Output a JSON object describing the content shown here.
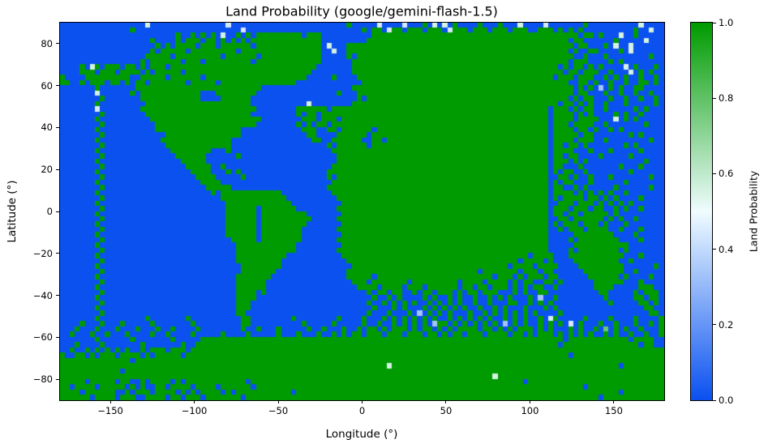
{
  "title": "Land Probability (google/gemini-flash-1.5)",
  "chart_data": {
    "type": "heatmap",
    "title": "Land Probability (google/gemini-flash-1.5)",
    "xlabel": "Longitude (°)",
    "ylabel": "Latitude (°)",
    "xlim": [
      -180,
      180
    ],
    "ylim": [
      -90,
      90
    ],
    "xticks": [
      -150,
      -100,
      -50,
      0,
      50,
      100,
      150
    ],
    "yticks": [
      80,
      60,
      40,
      20,
      0,
      -20,
      -40,
      -60,
      -80
    ],
    "grid_on": false,
    "colorbar": {
      "label": "Land Probability",
      "ticks": [
        0.0,
        0.2,
        0.4,
        0.6,
        0.8,
        1.0
      ]
    },
    "colormap": {
      "stops": [
        {
          "t": 0.0,
          "color": "#0b51f0"
        },
        {
          "t": 0.5,
          "color": "#f0fdff"
        },
        {
          "t": 1.0,
          "color": "#009b00"
        }
      ]
    },
    "grid": {
      "cols": 120,
      "lon_step_deg": 3,
      "lat_step_deg": 2.5,
      "value_encoding": "each digit d is land probability d/9, rows ordered lat +90 (top) to -90 (bottom), cols lon -180 to +180",
      "rows_lat_desc": [
        "000000000000000005000000000000000400000000000000000000000900000400004000905050900009000900050000400000009000000000050000",
        "000000000000009000000000000000000000400000000000000000000000909904990999099904999099909990999009990909090000000000900500",
        "000000000000000000000009009090905009090999999999099900000000009999999999999999999999999999999999999999909909000500900000",
        "000000000000000000900009099909909090909999999999999900000000099999999999999999999999999999999999999990990000009000005000",
        "000000000000000000090909999099909999990999999999999905000999999999999999999999999999999999999999999999099000905005000000",
        "000000000000000000909999909999999990999999999999999900500999999999999999999999999999999999999999999990900990000905000000",
        "000000000000000009999909999999990999999099999999999900000909999999999999999999999999999999999999999999009000900000000900",
        "000000000000000090999999099909999999990999999999999900000099999999999999999999999999999999999999999990999000090900000000",
        "000090590999099090999099999999999999999999999999999000000099999999999999999999999999999999999999999090990909000050900090",
        "000099909990999909099999099999999999999999999999990000000099999999999999999999999999999999999999999909909990090005090900",
        "900009999999990099999099999909999999999999999999900000900009999999999999999999999999999999999999990999099900909090090090",
        "990090999099090990999999909999909999999999999990000000000000999999999999999999999999999999999999999990099090090090099090",
        "000000090000000999999999999999999999999900000000000000000099999999999999999999999999999999999999999999090903090900990000",
        "000000050000009099999999999900099999999000000000000000090009999999999999999999999999999999999999999999099000900900900900",
        "000000009000000099999999999900009999990000000000000000000009099999999999999999999999999999999999999990909900090090090090",
        "000000090000000009999999999999999999990000000000050000000099999999999999999999999999999999999999999099090900900090000090",
        "000000040000000099999999999999999999999000000009999990999999999999999999999999999999999999999999909990909900900000909000",
        "000000009000000009999999999999999999990000000009099099999999999999999999999999999999999999999999909999090900009090090000",
        "000000090000000000999999999999999999999900000000999099909999999999999999999999999999999999999999909999099990005090900000",
        "000000009000000000099999999999999999999000000009090990999999999999999999999999999999999999999999909990999900900000009000",
        "000000090000000000099999999999999999000000000000999009909999990999999999999999999999999999999999909999099090090900000000",
        "000000009000000000000999999999999999000000000000099000099999909999999999999999999999999999999999909999909900000009090000",
        "000000090000000000009999999999999900000000000000009900999999009909999999999999999999999999999999909999099900900000000900",
        "000000009000000000000999999999999900000000000000000009099999909999999999999999999999999999999999909909909000000090900000",
        "000000090000000000000099999999000900000000000000000000999999999999999999999999999999999999999999909999000900090000090000",
        "000000009000000000000009999990000009000000000000000000099999999999999999999999999999999999999999909909900009000009000000",
        "000000090000000000000000999990000000000000000000000000099999999999999999999999999999999999999999909990909000000000009000",
        "000000009000000000000000099999009000000000000000000000999999999999999999999999999999999999999999909900090000000900090000",
        "000000090000000000000000009999000909000000000000000009999999999999999999999999999999999999999999909099009000000009000000",
        "000000009000000000000000000999900000900000000000000009099999999999999999999999999999999999999999900990900900090000000900",
        "000000090000000000000000000099990000000000000000000000999999999999999999999999999999999999999999909099000900000090000000",
        "000000009000000000000000000009999900000000000000000009999999999999999999999999999999999999999999909900909000009000000900",
        "000000090000000000000000000000909999999999990000000000999999999999999999999999999999999999999999909999090909090090000000",
        "000000009000000000000000000000009999999999999000000000099999999999999999999999999999999999999999909099990990909000090000",
        "000000090000000000000000000000000999999999999900000000009999999999999999999999999999999999999999900999099909090909000000",
        "000000009000000000000000000000000999999099999990000000099999999999999999999999999999999999999999909990999099009090090000",
        "000000090000000000000000000000000999999099999999900000009999999999999999999999999999999999999999909909909999909000000000",
        "000000009000000000000000000000000999999099999999990000099999999999999999999999999999999999999999900990999999090900900000",
        "000000090000000000000000000000000999999099999999900000009999999999999999999999999999999999999999909099909990900090000000",
        "000000009000000000000000000000000999999099999999000000099999999999999999999999999999999999999999900909990999900900090000",
        "000000090000000000000000000000000999999099999999000000009999999999999999999999999999999999999999900000999999990000900000",
        "000000009000000000000000000000000099999099999999000000099999999999999999999999999999999999999999900009099999999000090000",
        "000000090000000000000000000000000009999999999990000000009999999999999999999999999999999999999999900000999999999990000000",
        "000000009000000000000000000000000009999999999990000000099999999999999999999999999999999999999999900009099999999090000000",
        "000000090000000000000000000000000009999999999000000000009999999999999999999999999999999999999099990009999999999900090000",
        "000000009000000000000000000000000009999999990000000000000999999999999999999999999999999999909999090000999999999009000000",
        "000000090000000000000000000000000000999999990000000000000099999999999999999999999999999990999909999000099999999900000090",
        "000000009000000000000000000000000000999999900000000000000999999999999999999999999990999999909990990000009999999900900000",
        "000000090000000000000000000000000009999999000000000000000999990999999999999999999999990999090999099000000999999090000900",
        "000000009000000000000000000000000009999990000000000000000099909999999099999999909999099990909900990900000099999900090000",
        "000000090000000000000000000000000009999990000000000000000009999099990999099999909909909990909099009000000099990000099900",
        "000000009000000000000000000000000009999090000000000000000000090990990090990999090990999000909009900000000009900000909990",
        "000000090000000000000000000000000009999000000000000000000000009009090000909009090090090909000903009000000000900000990990",
        "000000009000000000000000000000000009990000000000000000000000090090909090090909090090090009900909090000000000090000099090",
        "000000090000000000000000000000000009990000000000000000000000009000909000909090909009009090009000909000000000000000009900",
        "000000009000000000000000000000000009900000000000000000000000090009000903090909000900909090909090000900000000000000000990",
        "000000090000000009000000090000000000990000000090000000090000900090909090909009090909090090909009049000009000090000900009",
        "000090009000900000900000009000000000990000000000900000900000900900909090903990909090909030909009090904090009009000900909",
        "000900090009000900090090000900000000900900090000090090009009099090999090990909099990990909099909090009090090709090090009",
        "009000900900090000900900009000009000090000090009000900909099099909990999099090990999099990990909990909090900909009009009",
        "000000090000009000000090000099999999999999999999999999999999999999999999999999999999999999999999999909999999999990999900",
        "000900009000000090000000900999999999999999999999999999999999999999999999999999999999999999999999999099999999999999909900",
        "009009090909090090999099909999999999999999999999999999999999999999999999999999999999999999999999999999999999999999999999",
        "900990909990999909099999099999999999999999999999999999999999999999999999999999999999999999999999999990999999999999999999",
        "999999999999990999999999999999999999999999999999999999999999999999999999999999999999999999999999999999999999999999999999",
        "999999999999999999999999999999999999999999999999999999999999999995999999999999999999999999999999999999999999999099999999",
        "999999999999099999999999999999999999999999999999999999999999999999999999999999999999999999999999999999999999999999999999",
        "999999999999999999999999999999999999999999999999999999999999999999999999999999999999995999999999999999999999999999999999",
        "999990999990990090999909099999999999909999999999999999999999999999999999999999999999999999990999999999999999999999999999",
        "990999909999909090099099990999909999990999999999999999999999999999999999999999999999999999999999999999990999999999999999",
        "999909999990090999099990909099990909999999999909999999999999999999999999999999999999999999999999999999999999999099999999",
        "999999099990999009999099099909999999099999999999999999999999999999999999999999999999999999999999999999999990999999999999"
      ]
    }
  }
}
